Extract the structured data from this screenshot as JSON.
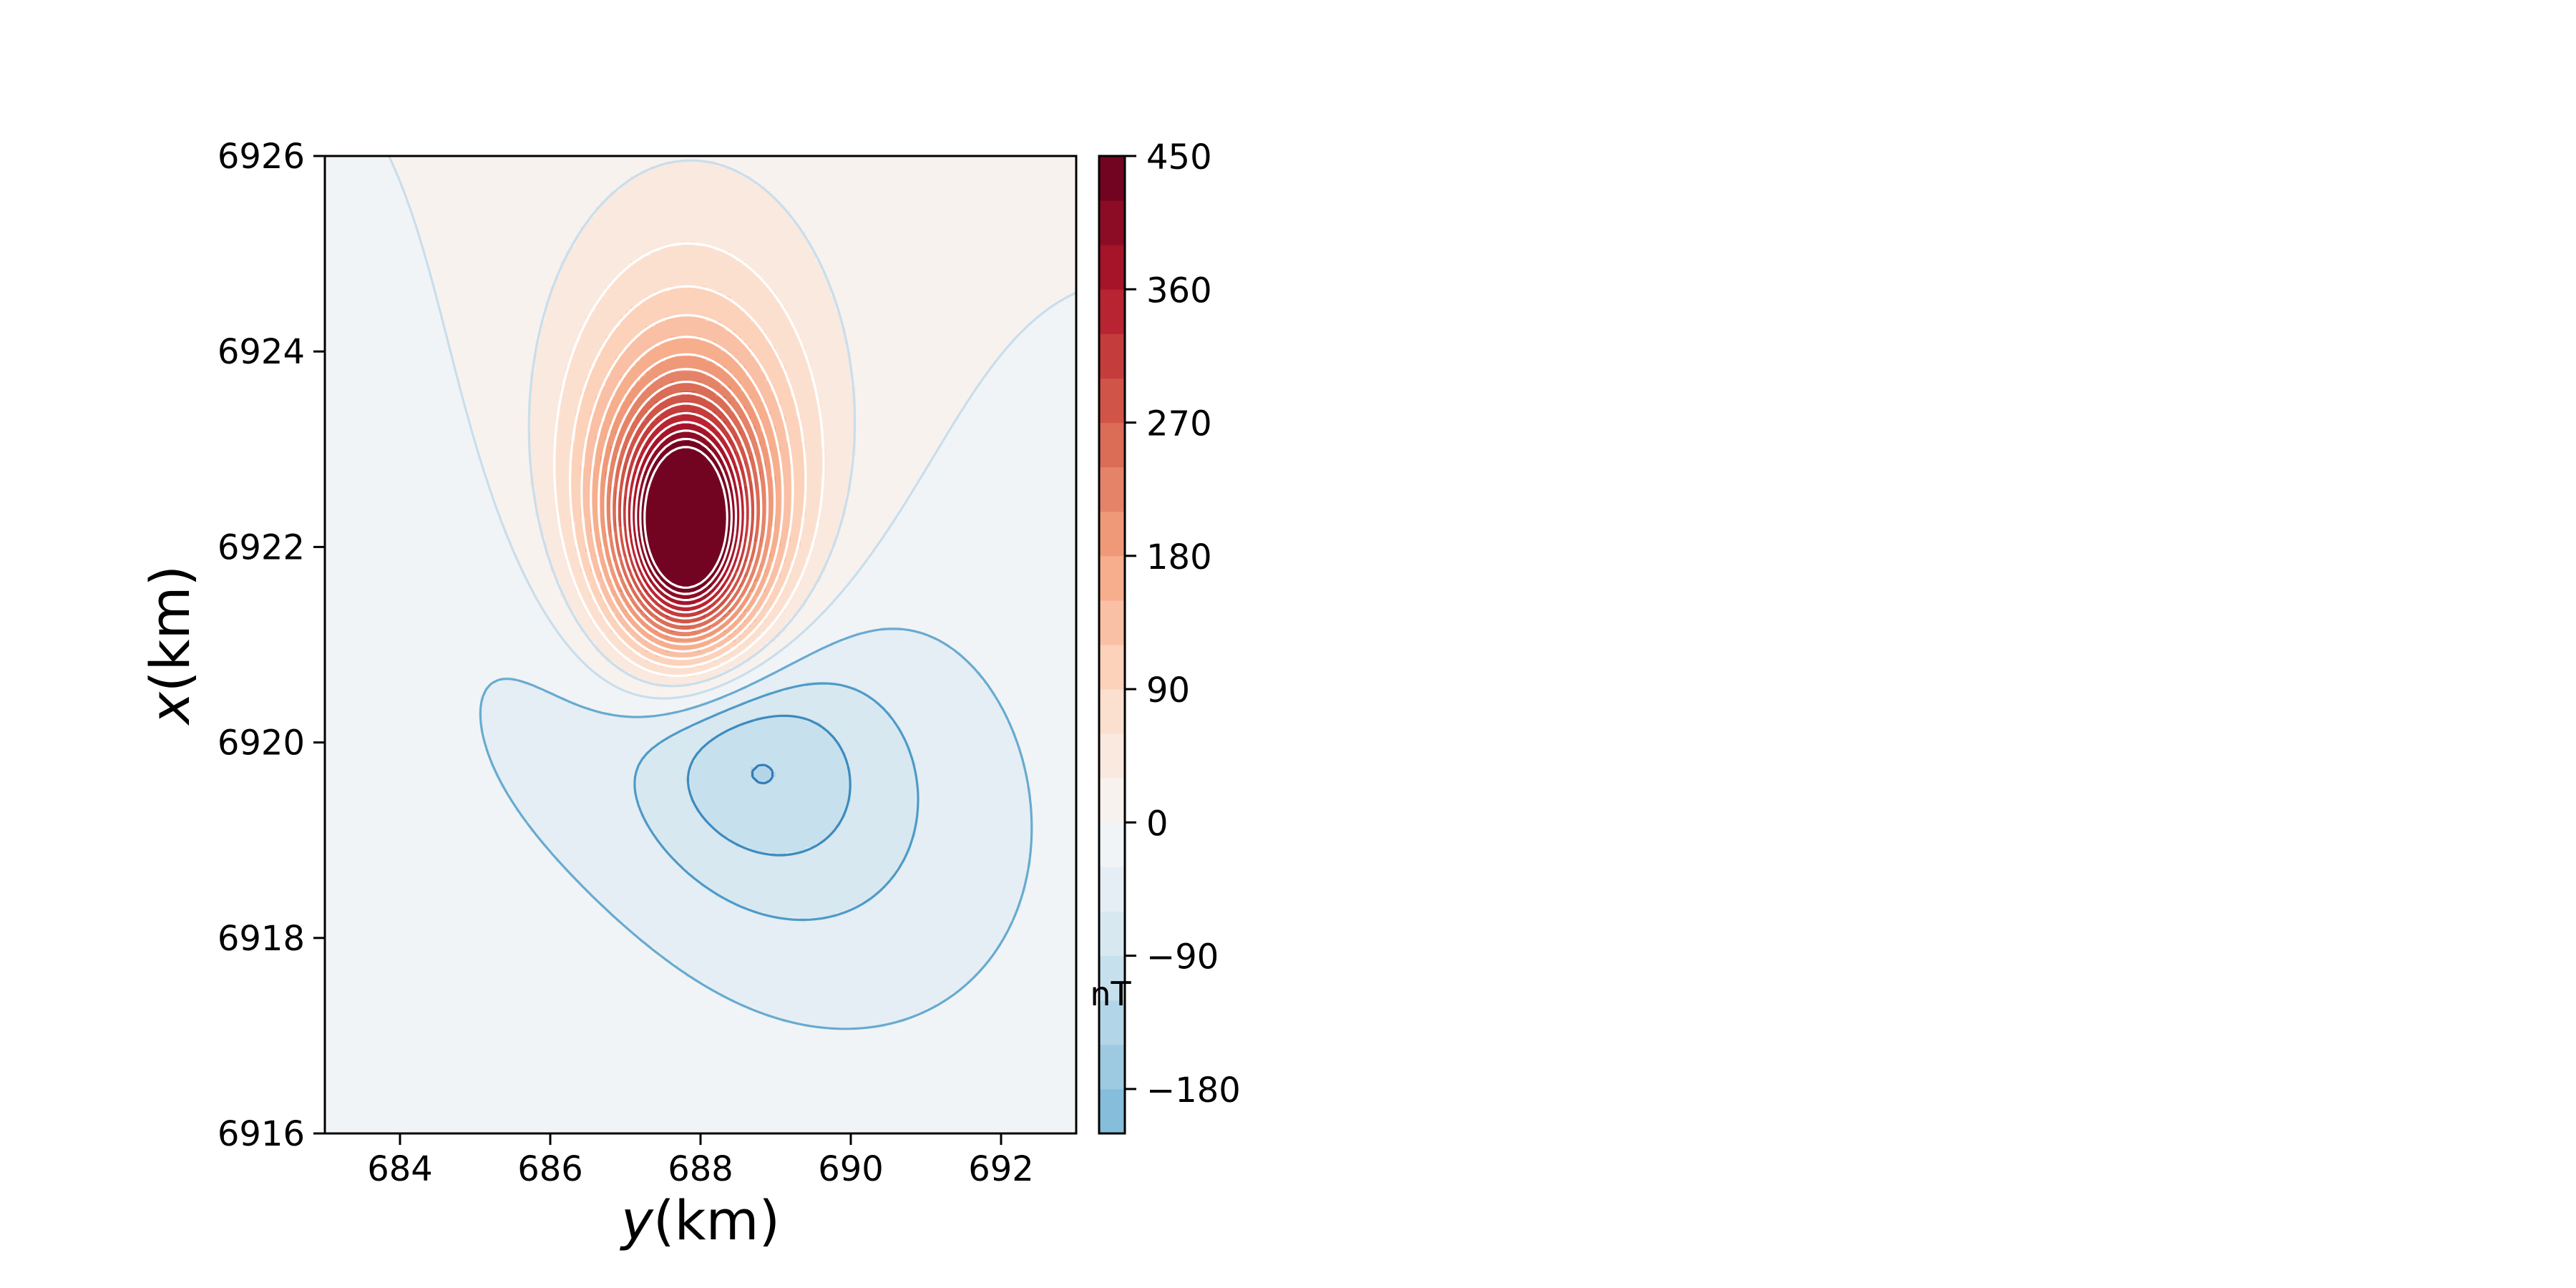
{
  "chart_data": {
    "type": "contour",
    "title": "",
    "xlabel": {
      "var": "y",
      "unit": "(km)"
    },
    "ylabel": {
      "var": "x",
      "unit": "(km)"
    },
    "xlim": [
      683,
      693
    ],
    "ylim": [
      6916,
      6926
    ],
    "xticks": [
      "684",
      "686",
      "688",
      "690",
      "692"
    ],
    "yticks": [
      "6916",
      "6918",
      "6920",
      "6922",
      "6924",
      "6926"
    ],
    "colorbar": {
      "label": "nT",
      "range": [
        -210,
        450
      ],
      "step": 30,
      "ticks": [
        "450",
        "360",
        "270",
        "180",
        "90",
        "0",
        "−90",
        "−180"
      ],
      "tick_values": [
        450,
        360,
        270,
        180,
        90,
        0,
        -90,
        -180
      ],
      "colormap": "RdBu_r"
    },
    "anomalies": [
      {
        "kind": "positive",
        "center": [
          687.8,
          6922.2
        ],
        "peak": 450
      },
      {
        "kind": "negative",
        "center": [
          688.2,
          6920.2
        ],
        "min": -210
      }
    ],
    "grid": false
  }
}
